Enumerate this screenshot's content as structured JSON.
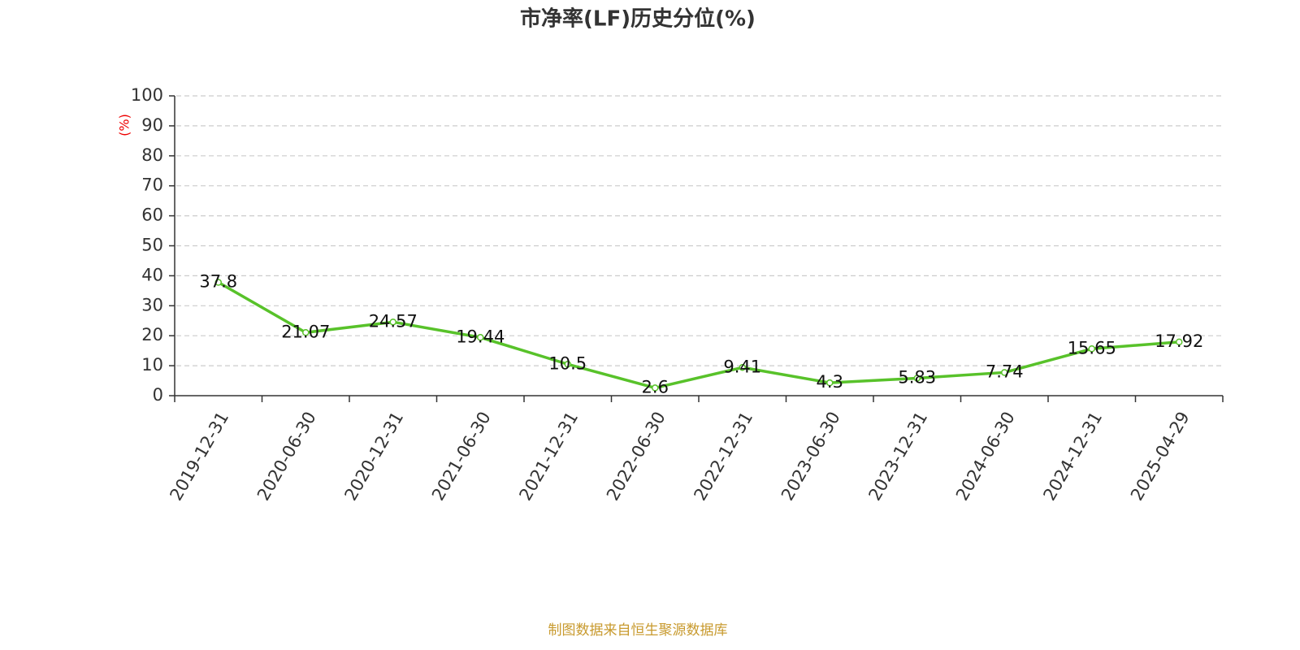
{
  "chart_data": {
    "type": "line",
    "title": "市净率(LF)历史分位(%)",
    "y_label": "(%)",
    "source": "制图数据来自恒生聚源数据库",
    "categories": [
      "2019-12-31",
      "2020-06-30",
      "2020-12-31",
      "2021-06-30",
      "2021-12-31",
      "2022-06-30",
      "2022-12-31",
      "2023-06-30",
      "2023-12-31",
      "2024-06-30",
      "2024-12-31",
      "2025-04-29"
    ],
    "values": [
      37.8,
      21.07,
      24.57,
      19.44,
      10.5,
      2.6,
      9.41,
      4.3,
      5.83,
      7.74,
      15.65,
      17.92
    ],
    "color": "#58c22a",
    "ylim": [
      0,
      100
    ],
    "yticks": [
      0,
      10,
      20,
      30,
      40,
      50,
      60,
      70,
      80,
      90,
      100
    ],
    "grid": true
  }
}
